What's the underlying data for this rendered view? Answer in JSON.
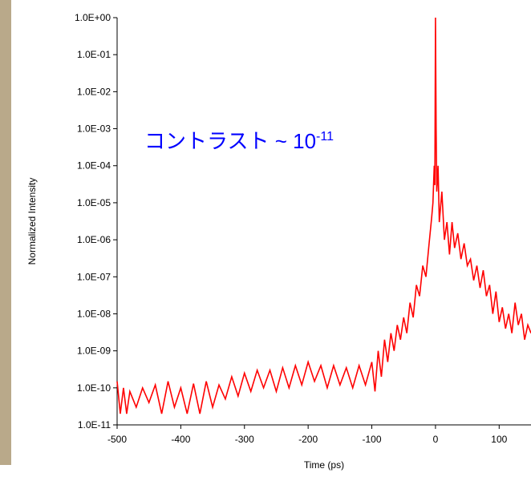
{
  "chart_data": {
    "type": "line",
    "annotation": {
      "text": "コントラスト ~ 10",
      "superscript": "-11"
    },
    "xlabel": "Time (ps)",
    "ylabel": "Normalized Intensity",
    "log_y": true,
    "grid": false,
    "xlim": [
      -500,
      150
    ],
    "ylim": [
      1e-11,
      1
    ],
    "xticks": [
      -500,
      -400,
      -300,
      -200,
      -100,
      0,
      100
    ],
    "yticks": [
      {
        "value": 1e-11,
        "label": "1.0E-11"
      },
      {
        "value": 1e-10,
        "label": "1.0E-10"
      },
      {
        "value": 1e-09,
        "label": "1.0E-09"
      },
      {
        "value": 1e-08,
        "label": "1.0E-08"
      },
      {
        "value": 1e-07,
        "label": "1.0E-07"
      },
      {
        "value": 1e-06,
        "label": "1.0E-06"
      },
      {
        "value": 1e-05,
        "label": "1.0E-05"
      },
      {
        "value": 0.0001,
        "label": "1.0E-04"
      },
      {
        "value": 0.001,
        "label": "1.0E-03"
      },
      {
        "value": 0.01,
        "label": "1.0E-02"
      },
      {
        "value": 0.1,
        "label": "1.0E-01"
      },
      {
        "value": 1,
        "label": "1.0E+00"
      }
    ],
    "series": [
      {
        "color": "#ff0000",
        "x": [
          -500,
          -495,
          -490,
          -485,
          -480,
          -470,
          -460,
          -450,
          -440,
          -430,
          -420,
          -410,
          -400,
          -390,
          -380,
          -370,
          -360,
          -350,
          -340,
          -330,
          -320,
          -310,
          -300,
          -290,
          -280,
          -270,
          -260,
          -250,
          -240,
          -230,
          -220,
          -210,
          -200,
          -190,
          -180,
          -170,
          -160,
          -150,
          -140,
          -130,
          -120,
          -110,
          -100,
          -95,
          -90,
          -85,
          -80,
          -75,
          -70,
          -65,
          -60,
          -55,
          -50,
          -45,
          -40,
          -35,
          -30,
          -25,
          -20,
          -15,
          -10,
          -6,
          -4,
          -2,
          -1,
          0,
          1,
          2,
          4,
          6,
          10,
          14,
          18,
          22,
          26,
          30,
          35,
          40,
          45,
          50,
          55,
          60,
          65,
          70,
          75,
          80,
          85,
          90,
          95,
          100,
          105,
          110,
          115,
          120,
          125,
          130,
          135,
          140,
          145,
          150
        ],
        "values": [
          1.5e-10,
          2e-11,
          1e-10,
          2e-11,
          8e-11,
          3e-11,
          1e-10,
          4e-11,
          1.2e-10,
          2e-11,
          1.5e-10,
          3e-11,
          1e-10,
          2e-11,
          1.3e-10,
          2e-11,
          1.5e-10,
          3e-11,
          1.2e-10,
          5e-11,
          2e-10,
          6e-11,
          2.5e-10,
          8e-11,
          3e-10,
          1e-10,
          3e-10,
          8e-11,
          3.5e-10,
          1e-10,
          4e-10,
          1.2e-10,
          5e-10,
          1.5e-10,
          4e-10,
          1e-10,
          4e-10,
          1.2e-10,
          3.5e-10,
          1e-10,
          4e-10,
          1.2e-10,
          5e-10,
          8e-11,
          1e-09,
          2e-10,
          2e-09,
          5e-10,
          3e-09,
          1e-09,
          5e-09,
          2e-09,
          8e-09,
          3e-09,
          2e-08,
          8e-09,
          6e-08,
          3e-08,
          2e-07,
          1e-07,
          8e-07,
          4e-06,
          1e-05,
          0.0001,
          3e-05,
          1,
          0.001,
          2e-05,
          0.0001,
          3e-06,
          2e-05,
          1e-06,
          3e-06,
          4e-07,
          3e-06,
          6e-07,
          1.5e-06,
          3e-07,
          8e-07,
          2e-07,
          3e-07,
          8e-08,
          2e-07,
          5e-08,
          1.5e-07,
          3e-08,
          6e-08,
          1e-08,
          4e-08,
          6e-09,
          1.5e-08,
          4e-09,
          1e-08,
          3e-09,
          2e-08,
          5e-09,
          1e-08,
          2e-09,
          5e-09,
          3e-09
        ]
      }
    ]
  }
}
